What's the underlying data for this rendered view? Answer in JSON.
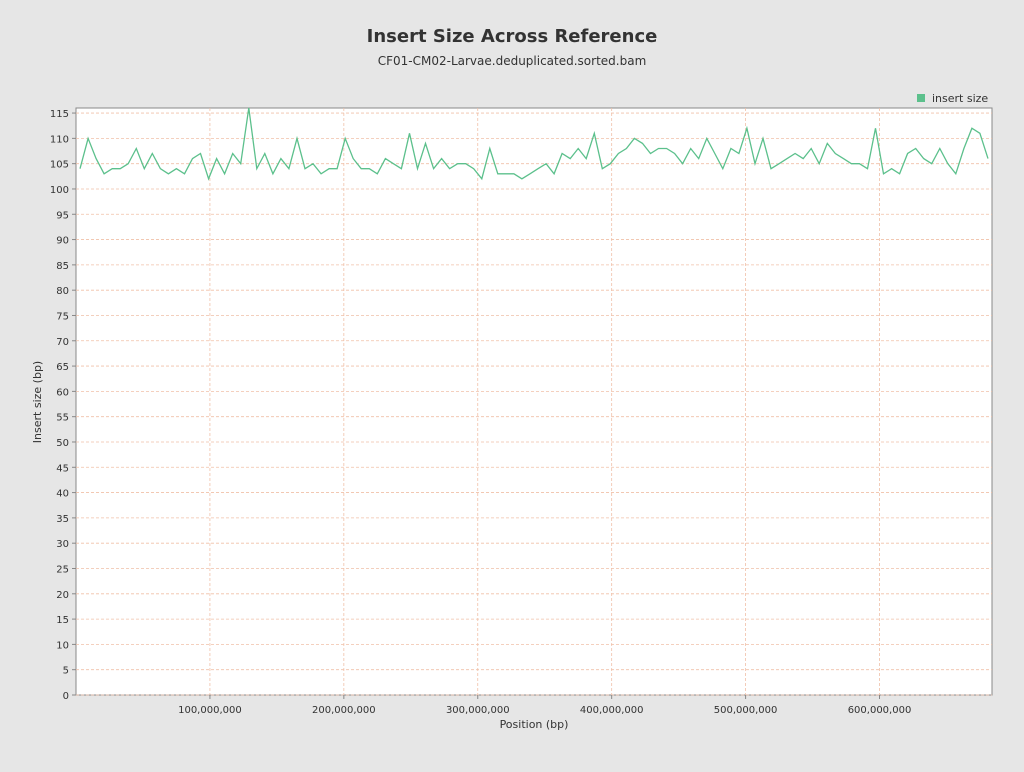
{
  "chart_data": {
    "type": "line",
    "title": "Insert Size Across Reference",
    "subtitle": "CF01-CM02-Larvae.deduplicated.sorted.bam",
    "x_label": "Position (bp)",
    "y_label": "Insert size (bp)",
    "x": [
      3000000,
      9000000,
      15000000,
      21000000,
      27000000,
      33000000,
      39000000,
      45000000,
      51000000,
      57000000,
      63000000,
      69000000,
      75000000,
      81000000,
      87000000,
      93000000,
      99000000,
      105000000,
      111000000,
      117000000,
      123000000,
      129000000,
      135000000,
      141000000,
      147000000,
      153000000,
      159000000,
      165000000,
      171000000,
      177000000,
      183000000,
      189000000,
      195000000,
      201000000,
      207000000,
      213000000,
      219000000,
      225000000,
      231000000,
      237000000,
      243000000,
      249000000,
      255000000,
      261000000,
      267000000,
      273000000,
      279000000,
      285000000,
      291000000,
      297000000,
      303000000,
      309000000,
      315000000,
      321000000,
      327000000,
      333000000,
      339000000,
      345000000,
      351000000,
      357000000,
      363000000,
      369000000,
      375000000,
      381000000,
      387000000,
      393000000,
      399000000,
      405000000,
      411000000,
      417000000,
      423000000,
      429000000,
      435000000,
      441000000,
      447000000,
      453000000,
      459000000,
      465000000,
      471000000,
      477000000,
      483000000,
      489000000,
      495000000,
      501000000,
      507000000,
      513000000,
      519000000,
      525000000,
      531000000,
      537000000,
      543000000,
      549000000,
      555000000,
      561000000,
      567000000,
      573000000,
      579000000,
      585000000,
      591000000,
      597000000,
      603000000,
      609000000,
      615000000,
      621000000,
      627000000,
      633000000,
      639000000,
      645000000,
      651000000,
      657000000,
      663000000,
      669000000,
      675000000,
      681000000
    ],
    "series": [
      {
        "name": "insert size",
        "color": "#5cc08c",
        "values": [
          104,
          110,
          106,
          103,
          104,
          104,
          105,
          108,
          104,
          107,
          104,
          103,
          104,
          103,
          106,
          107,
          102,
          106,
          103,
          107,
          105,
          116,
          104,
          107,
          103,
          106,
          104,
          110,
          104,
          105,
          103,
          104,
          104,
          110,
          106,
          104,
          104,
          103,
          106,
          105,
          104,
          111,
          104,
          109,
          104,
          106,
          104,
          105,
          105,
          104,
          102,
          108,
          103,
          103,
          103,
          102,
          103,
          104,
          105,
          103,
          107,
          106,
          108,
          106,
          111,
          104,
          105,
          107,
          108,
          110,
          109,
          107,
          108,
          108,
          107,
          105,
          108,
          106,
          110,
          107,
          104,
          108,
          107,
          112,
          105,
          110,
          104,
          105,
          106,
          107,
          106,
          108,
          105,
          109,
          107,
          106,
          105,
          105,
          104,
          112,
          103,
          104,
          103,
          107,
          108,
          106,
          105,
          108,
          105,
          103,
          108,
          112,
          111,
          106
        ]
      }
    ],
    "xlim": [
      0,
      684000000
    ],
    "ylim": [
      0,
      116
    ],
    "xticks": [
      {
        "value": 100000000,
        "label": "100,000,000"
      },
      {
        "value": 200000000,
        "label": "200,000,000"
      },
      {
        "value": 300000000,
        "label": "300,000,000"
      },
      {
        "value": 400000000,
        "label": "400,000,000"
      },
      {
        "value": 500000000,
        "label": "500,000,000"
      },
      {
        "value": 600000000,
        "label": "600,000,000"
      }
    ],
    "yticks": [
      0,
      5,
      10,
      15,
      20,
      25,
      30,
      35,
      40,
      45,
      50,
      55,
      60,
      65,
      70,
      75,
      80,
      85,
      90,
      95,
      100,
      105,
      110,
      115
    ],
    "grid": true,
    "legend": "top-right"
  }
}
